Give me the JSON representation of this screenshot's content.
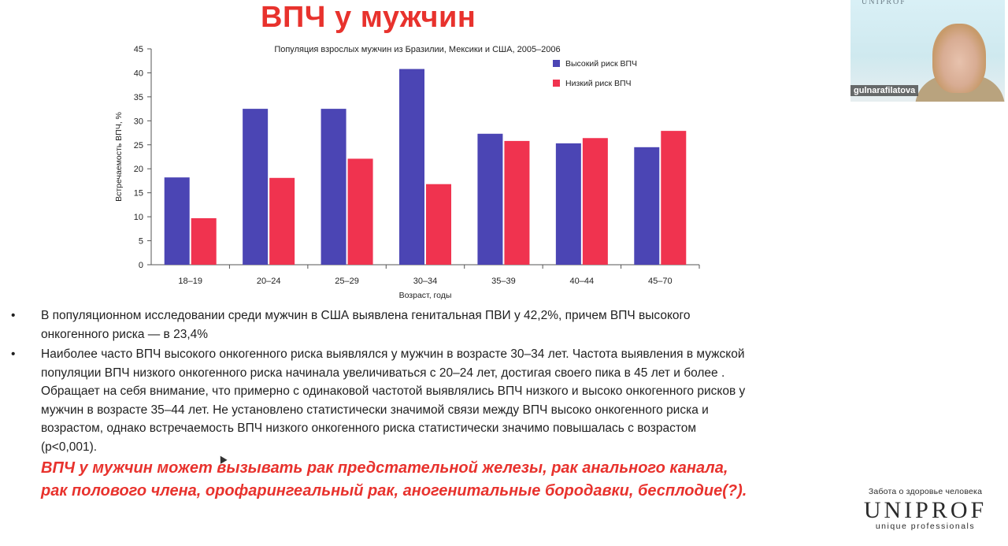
{
  "slide": {
    "title": "ВПЧ у мужчин",
    "bullets": [
      "В популяционном исследовании среди мужчин в США выявлена генитальная ПВИ у 42,2%, причем ВПЧ высокого онкогенного риска — в 23,4%",
      "Наиболее часто ВПЧ высокого онкогенного риска выявлялся у мужчин в возрасте 30–34 лет. Частота выявления в мужской популяции ВПЧ низкого онкогенного риска начинала увеличиваться с 20–24 лет, достигая своего пика в 45 лет и более . Обращает на себя внимание, что примерно с одинаковой частотой выявлялись ВПЧ низкого и высоко онкогенного рисков у мужчин в возрасте 35–44 лет. Не установлено статистически значимой связи между ВПЧ высоко онкогенного риска и возрастом, однако встречаемость ВПЧ низкого онкогенного риска статистически значимо повышалась с возрастом (p<0,001)."
    ],
    "conclusion": "ВПЧ у мужчин может вызывать рак предстательной железы, рак анального канала, рак полового члена, орофарингеальный рак, аногенитальные бородавки, бесплодие(?).",
    "bullet_glyph": "•"
  },
  "video": {
    "participant_name": "gulnarafilatova",
    "tile_logo": "UNIPROF"
  },
  "branding": {
    "tagline": "Забота о здоровье человека",
    "logo": "UNIPROF",
    "subtitle": "unique professionals"
  },
  "colors": {
    "accent_red": "#e8322d",
    "series_high": "#4b45b4",
    "series_low": "#f0334f"
  },
  "chart_data": {
    "type": "bar",
    "title": "Популяция взрослых мужчин из Бразилии, Мексики и США, 2005–2006",
    "xlabel": "Возраст, годы",
    "ylabel": "Встречаемость ВПЧ, %",
    "categories": [
      "18–19",
      "20–24",
      "25–29",
      "30–34",
      "35–39",
      "40–44",
      "45–70"
    ],
    "ylim": [
      0,
      45
    ],
    "yticks": [
      0,
      5,
      10,
      15,
      20,
      25,
      30,
      35,
      40,
      45
    ],
    "grid": false,
    "legend": "top-right",
    "series": [
      {
        "name": "Высокий риск ВПЧ",
        "color": "#4b45b4",
        "values": [
          18.2,
          32.5,
          32.5,
          40.8,
          27.3,
          25.3,
          24.5
        ]
      },
      {
        "name": "Низкий риск ВПЧ",
        "color": "#f0334f",
        "values": [
          9.7,
          18.1,
          22.1,
          16.8,
          25.8,
          26.4,
          27.9
        ]
      }
    ]
  }
}
